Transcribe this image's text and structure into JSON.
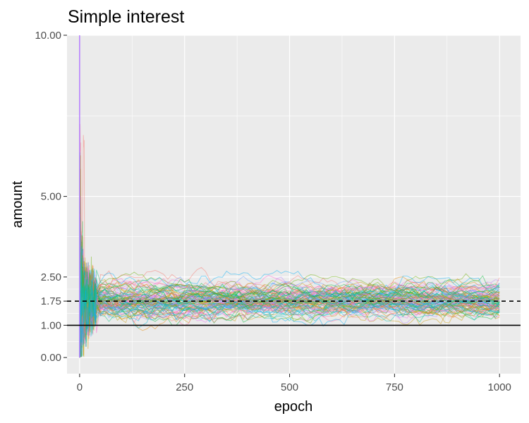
{
  "chart_data": {
    "type": "line",
    "title": "Simple interest",
    "xlabel": "epoch",
    "ylabel": "amount",
    "xlim": [
      -30,
      1050
    ],
    "ylim": [
      -0.5,
      10.0
    ],
    "x_ticks": [
      0,
      250,
      500,
      750,
      1000
    ],
    "x_tick_labels": [
      "0",
      "250",
      "500",
      "750",
      "1000"
    ],
    "y_ticks": [
      0.0,
      1.0,
      1.75,
      2.5,
      5.0,
      10.0
    ],
    "y_tick_labels": [
      "0.00",
      "1.00",
      "1.75",
      "2.50",
      "5.00",
      "10.00"
    ],
    "grid": true,
    "legend": "none",
    "reference_lines": [
      {
        "y": 1.0,
        "style": "solid",
        "color": "#000000"
      },
      {
        "y": 1.75,
        "style": "dashed",
        "color": "#000000"
      }
    ],
    "series_summary": {
      "count": 100,
      "epochs": [
        0,
        1000
      ],
      "start_max": 10.0,
      "converges_to": 1.75,
      "final_range": [
        1.45,
        2.05
      ]
    },
    "colors": {
      "panel": "#ebebeb",
      "grid_major": "#ffffff",
      "palette": [
        "#f8766d",
        "#e58700",
        "#c99800",
        "#a3a500",
        "#6bb100",
        "#00ba38",
        "#00bf7d",
        "#00c0af",
        "#00bcd8",
        "#00b0f6",
        "#619cff",
        "#b983ff",
        "#e76bf3",
        "#fd61d1",
        "#ff67a4"
      ]
    }
  }
}
